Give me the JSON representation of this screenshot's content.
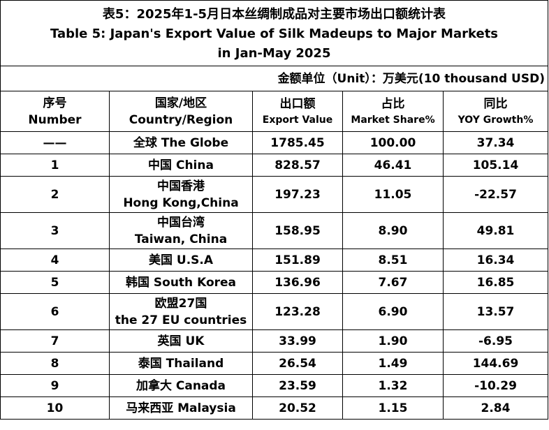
{
  "title": {
    "zh": "表5：2025年1-5月日本丝绸制成品对主要市场出口额统计表",
    "en_line1": "Table 5: Japan's Export Value of Silk Madeups to Major Markets",
    "en_line2": "in Jan-May 2025"
  },
  "unit": "金额单位（Unit）：万美元(10 thousand USD)",
  "headers": {
    "no_zh": "序号",
    "no_en": "Number",
    "region_zh": "国家/地区",
    "region_en": "Country/Region",
    "value_zh": "出口额",
    "value_en": "Export Value",
    "share_zh": "占比",
    "share_en": "Market Share%",
    "yoy_zh": "同比",
    "yoy_en": "YOY Growth%"
  },
  "rows": [
    {
      "no": "——",
      "region1": "全球 The Globe",
      "region2": "",
      "value": "1785.45",
      "share": "100.00",
      "yoy": "37.34"
    },
    {
      "no": "1",
      "region1": "中国 China",
      "region2": "",
      "value": "828.57",
      "share": "46.41",
      "yoy": "105.14"
    },
    {
      "no": "2",
      "region1": "中国香港",
      "region2": "Hong Kong,China",
      "value": "197.23",
      "share": "11.05",
      "yoy": "-22.57"
    },
    {
      "no": "3",
      "region1": "中国台湾",
      "region2": "Taiwan, China",
      "value": "158.95",
      "share": "8.90",
      "yoy": "49.81"
    },
    {
      "no": "4",
      "region1": "美国 U.S.A",
      "region2": "",
      "value": "151.89",
      "share": "8.51",
      "yoy": "16.34"
    },
    {
      "no": "5",
      "region1": "韩国 South Korea",
      "region2": "",
      "value": "136.96",
      "share": "7.67",
      "yoy": "16.85"
    },
    {
      "no": "6",
      "region1": "欧盟27国",
      "region2": "the 27 EU countries",
      "value": "123.28",
      "share": "6.90",
      "yoy": "13.57"
    },
    {
      "no": "7",
      "region1": "英国 UK",
      "region2": "",
      "value": "33.99",
      "share": "1.90",
      "yoy": "-6.95"
    },
    {
      "no": "8",
      "region1": "泰国 Thailand",
      "region2": "",
      "value": "26.54",
      "share": "1.49",
      "yoy": "144.69"
    },
    {
      "no": "9",
      "region1": "加拿大 Canada",
      "region2": "",
      "value": "23.59",
      "share": "1.32",
      "yoy": "-10.29"
    },
    {
      "no": "10",
      "region1": "马来西亚 Malaysia",
      "region2": "",
      "value": "20.52",
      "share": "1.15",
      "yoy": "2.84"
    }
  ]
}
